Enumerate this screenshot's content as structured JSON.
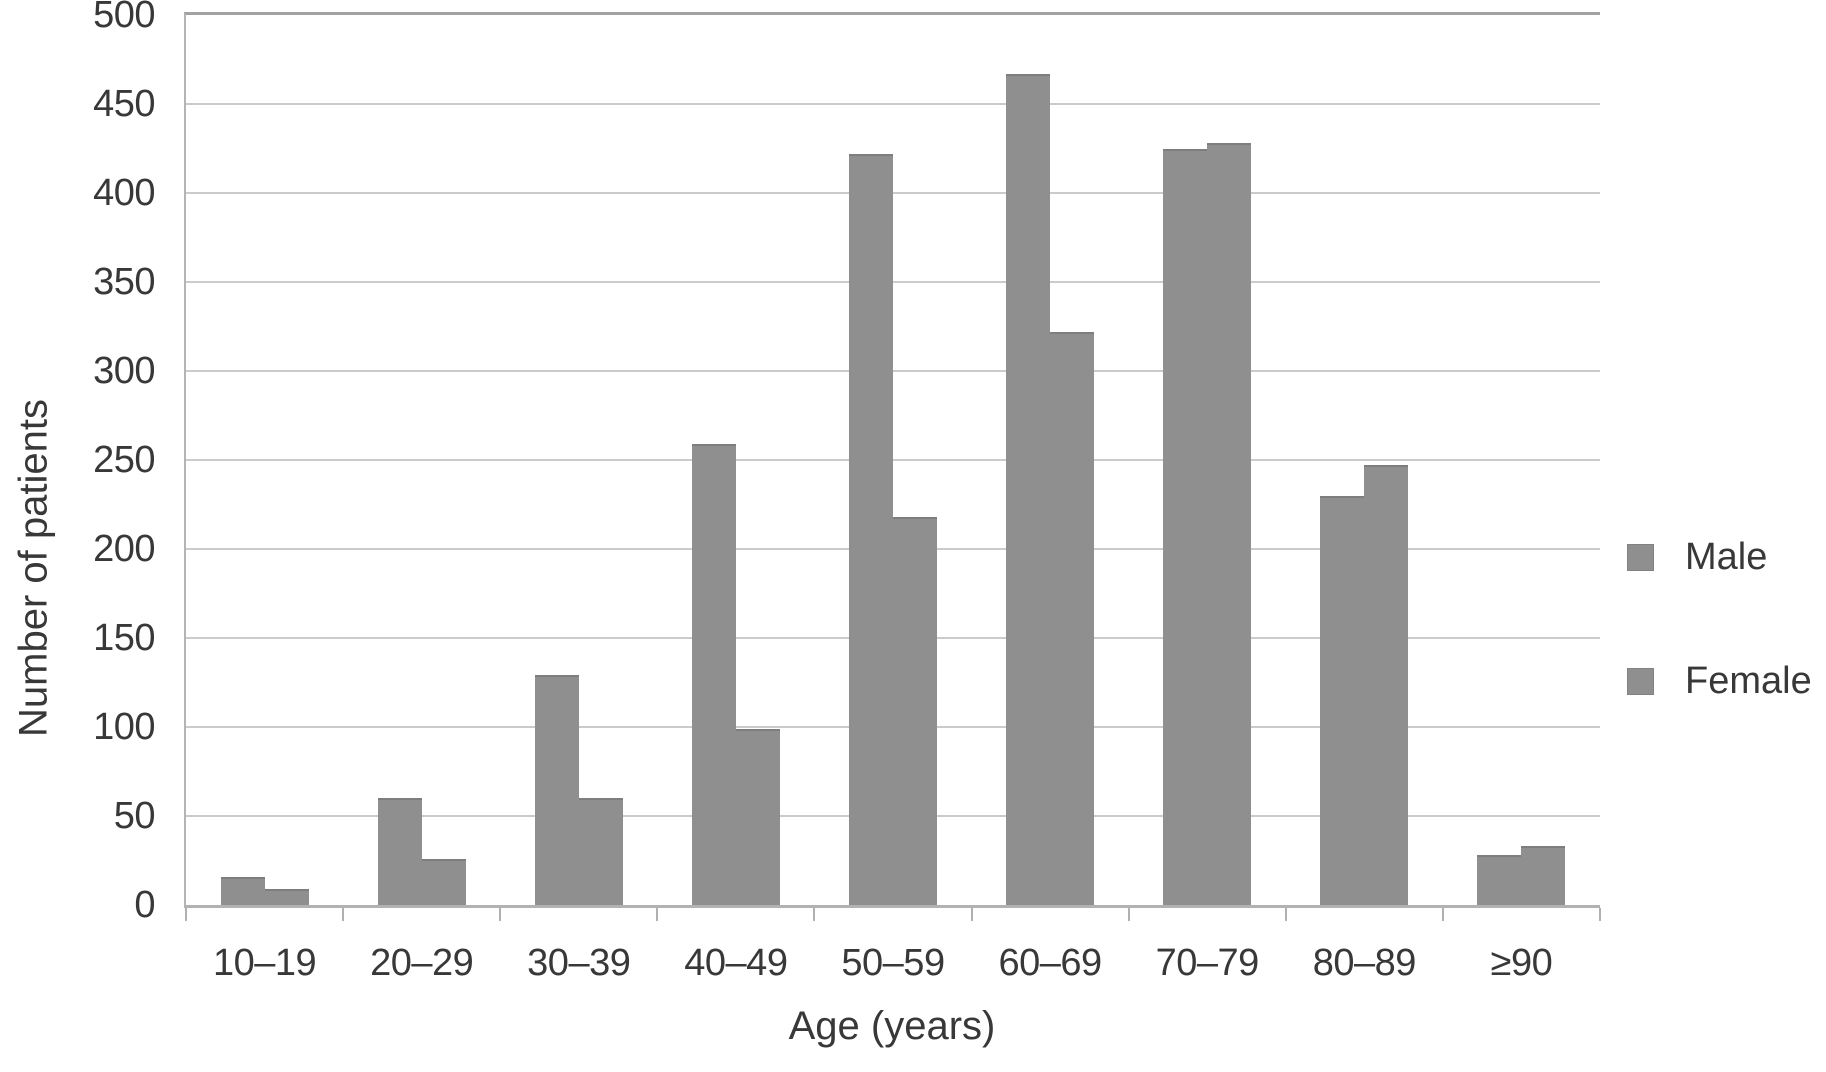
{
  "chart_data": {
    "type": "bar",
    "title": "",
    "xlabel": "Age (years)",
    "ylabel": "Number of patients",
    "categories": [
      "10–19",
      "20–29",
      "30–39",
      "40–49",
      "50–59",
      "60–69",
      "70–79",
      "80–89",
      "≥90"
    ],
    "series": [
      {
        "name": "Male",
        "color": "#8f8f8f",
        "values": [
          16,
          60,
          129,
          259,
          422,
          467,
          425,
          230,
          28
        ]
      },
      {
        "name": "Female",
        "color": "#8f8f8f",
        "values": [
          9,
          26,
          60,
          99,
          218,
          322,
          428,
          247,
          33
        ]
      }
    ],
    "ylim": [
      0,
      500
    ],
    "ytick_step": 50,
    "ytick_labels": [
      "0",
      "50",
      "100",
      "150",
      "200",
      "250",
      "300",
      "350",
      "400",
      "450",
      "500"
    ],
    "grid": true,
    "legend_position": "right",
    "legend_entries": [
      "Male",
      "Female"
    ]
  },
  "colors": {
    "bar_fill": "#8f8f8f",
    "bar_cap": "#7e7e7e",
    "gridline": "#cbcbcb",
    "plot_top_border": "#a2a2a2",
    "axis_line": "#b2b2b2",
    "text": "#383838",
    "background": "#ffffff"
  }
}
